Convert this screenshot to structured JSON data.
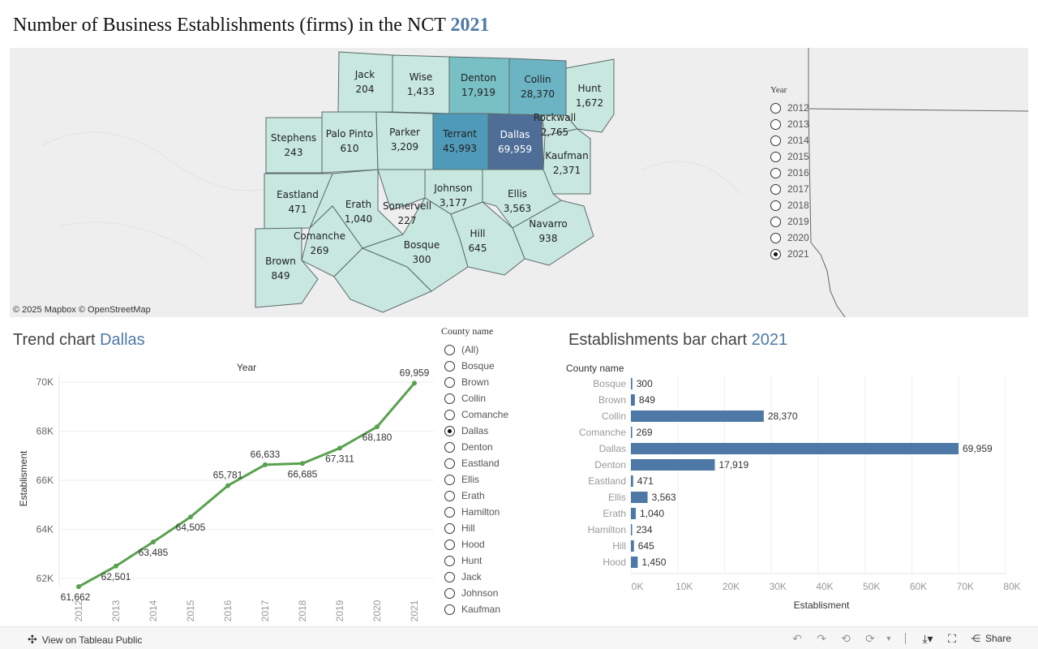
{
  "title": {
    "text": "Number of Business Establishments (firms) in the NCT",
    "year": "2021"
  },
  "colors": {
    "accent": "#4e79a7",
    "line": "#59a14f",
    "bar": "#4e79a7"
  },
  "map": {
    "attribution": "© 2025 Mapbox  © OpenStreetMap",
    "counties": [
      {
        "name": "Jack",
        "value": "204"
      },
      {
        "name": "Wise",
        "value": "1,433"
      },
      {
        "name": "Denton",
        "value": "17,919"
      },
      {
        "name": "Collin",
        "value": "28,370"
      },
      {
        "name": "Hunt",
        "value": "1,672"
      },
      {
        "name": "Stephens",
        "value": "243"
      },
      {
        "name": "Palo Pinto",
        "value": "610"
      },
      {
        "name": "Parker",
        "value": "3,209"
      },
      {
        "name": "Terrant",
        "value": "45,993"
      },
      {
        "name": "Dallas",
        "value": "69,959"
      },
      {
        "name": "Rockwall",
        "value": "2,765"
      },
      {
        "name": "Kaufman",
        "value": "2,371"
      },
      {
        "name": "Eastland",
        "value": "471"
      },
      {
        "name": "Erath",
        "value": "1,040"
      },
      {
        "name": "Somervell",
        "value": "227"
      },
      {
        "name": "Johnson",
        "value": "3,177"
      },
      {
        "name": "Ellis",
        "value": "3,563"
      },
      {
        "name": "Comanche",
        "value": "269"
      },
      {
        "name": "Navarro",
        "value": "938"
      },
      {
        "name": "Bosque",
        "value": "300"
      },
      {
        "name": "Hill",
        "value": "645"
      },
      {
        "name": "Brown",
        "value": "849"
      }
    ]
  },
  "year_filter": {
    "label": "Year",
    "options": [
      "2012",
      "2013",
      "2014",
      "2015",
      "2016",
      "2017",
      "2018",
      "2019",
      "2020",
      "2021"
    ],
    "selected": "2021"
  },
  "trend": {
    "title": "Trend chart",
    "county": "Dallas"
  },
  "county_filter": {
    "label": "County name",
    "options": [
      "(All)",
      "Bosque",
      "Brown",
      "Collin",
      "Comanche",
      "Dallas",
      "Denton",
      "Eastland",
      "Ellis",
      "Erath",
      "Hamilton",
      "Hill",
      "Hood",
      "Hunt",
      "Jack",
      "Johnson",
      "Kaufman"
    ],
    "selected": "Dallas"
  },
  "bar": {
    "title": "Establishments bar chart",
    "year": "2021"
  },
  "chart_data": [
    {
      "type": "line",
      "title": "Trend chart Dallas",
      "xlabel": "Year",
      "ylabel": "Establisment",
      "x": [
        "2012",
        "2013",
        "2014",
        "2015",
        "2016",
        "2017",
        "2018",
        "2019",
        "2020",
        "2021"
      ],
      "values": [
        61662,
        62501,
        63485,
        64505,
        65781,
        66633,
        66685,
        67311,
        68180,
        69959
      ],
      "labels": [
        "61,662",
        "62,501",
        "63,485",
        "64,505",
        "65,781",
        "66,633",
        "66,685",
        "67,311",
        "68,180",
        "69,959"
      ],
      "yticks": [
        62000,
        64000,
        66000,
        68000,
        70000
      ],
      "ytick_labels": [
        "62K",
        "64K",
        "66K",
        "68K",
        "70K"
      ],
      "ylim": [
        61700,
        70300
      ],
      "grid": true
    },
    {
      "type": "bar",
      "orientation": "horizontal",
      "title": "Establishments bar chart 2021",
      "xlabel": "Establisment",
      "ylabel": "County name",
      "categories": [
        "Bosque",
        "Brown",
        "Collin",
        "Comanche",
        "Dallas",
        "Denton",
        "Eastland",
        "Ellis",
        "Erath",
        "Hamilton",
        "Hill",
        "Hood"
      ],
      "values": [
        300,
        849,
        28370,
        269,
        69959,
        17919,
        471,
        3563,
        1040,
        234,
        645,
        1450
      ],
      "labels": [
        "300",
        "849",
        "28,370",
        "269",
        "69,959",
        "17,919",
        "471",
        "3,563",
        "1,040",
        "234",
        "645",
        "1,450"
      ],
      "xticks": [
        0,
        10000,
        20000,
        30000,
        40000,
        50000,
        60000,
        70000,
        80000
      ],
      "xtick_labels": [
        "0K",
        "10K",
        "20K",
        "30K",
        "40K",
        "50K",
        "60K",
        "70K",
        "80K"
      ],
      "xlim": [
        0,
        80000
      ],
      "grid": true
    }
  ],
  "footer": {
    "view_label": "View on Tableau Public",
    "share_label": "Share"
  }
}
